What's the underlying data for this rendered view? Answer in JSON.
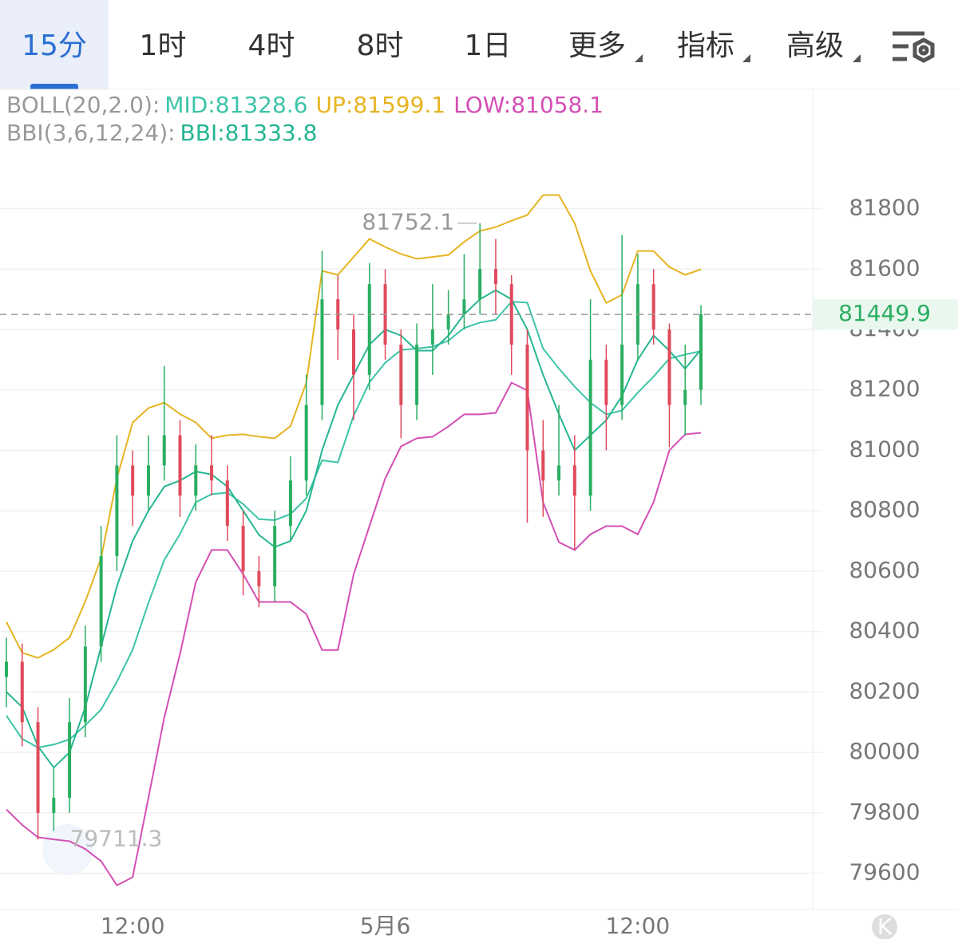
{
  "tabs": [
    "15分",
    "1时",
    "4时",
    "8时",
    "1日",
    "更多",
    "指标",
    "高级"
  ],
  "indicators": {
    "boll": {
      "label": "BOLL(20,2.0):",
      "mid": "MID:81328.6",
      "up": "UP:81599.1",
      "low": "LOW:81058.1"
    },
    "bbi": {
      "label": "BBI(3,6,12,24):",
      "value": "BBI:81333.8"
    }
  },
  "chart_data": {
    "type": "candlestick",
    "categories": [
      null,
      null,
      null,
      null,
      null,
      null,
      null,
      null,
      "12:00",
      null,
      null,
      null,
      null,
      null,
      null,
      null,
      null,
      null,
      null,
      null,
      null,
      null,
      null,
      null,
      "5月6",
      null,
      null,
      null,
      null,
      null,
      null,
      null,
      null,
      null,
      null,
      null,
      null,
      null,
      null,
      null,
      "12:00",
      null,
      null,
      null,
      null
    ],
    "open": [
      80250,
      80300,
      80100,
      79800,
      79850,
      80100,
      80350,
      80650,
      80950,
      80850,
      80950,
      81050,
      80850,
      80950,
      80900,
      80750,
      80600,
      80550,
      80750,
      80900,
      81150,
      81500,
      81400,
      81250,
      81550,
      81350,
      81150,
      81350,
      81400,
      81450,
      81500,
      81600,
      81550,
      81350,
      81000,
      80900,
      80950,
      80850,
      81300,
      81150,
      81350,
      81550,
      81400,
      81150,
      81200
    ],
    "high": [
      80380,
      80360,
      80150,
      79950,
      80180,
      80420,
      80750,
      81050,
      81000,
      81050,
      81280,
      81100,
      81020,
      81050,
      80950,
      80800,
      80650,
      80800,
      80980,
      81250,
      81660,
      81580,
      81450,
      81620,
      81600,
      81400,
      81420,
      81550,
      81530,
      81650,
      81752.1,
      81700,
      81580,
      81400,
      81100,
      81150,
      81050,
      81500,
      81350,
      81713,
      81650,
      81600,
      81420,
      81350,
      81480
    ],
    "low": [
      80150,
      80020,
      79711.3,
      79740,
      79800,
      80050,
      80300,
      80600,
      80750,
      80800,
      80900,
      80780,
      80800,
      80850,
      80700,
      80520,
      80480,
      80500,
      80700,
      80850,
      81100,
      81300,
      81100,
      81200,
      81300,
      81040,
      81100,
      81250,
      81350,
      81400,
      81450,
      81450,
      81250,
      80760,
      80780,
      80850,
      80670,
      80800,
      81000,
      81100,
      81300,
      81350,
      81010,
      81050,
      81150
    ],
    "close": [
      80300,
      80100,
      79800,
      79850,
      80100,
      80350,
      80650,
      80950,
      80850,
      80950,
      81050,
      80850,
      80950,
      80900,
      80750,
      80600,
      80550,
      80750,
      80900,
      81150,
      81500,
      81400,
      81250,
      81550,
      81350,
      81150,
      81350,
      81400,
      81450,
      81500,
      81600,
      81550,
      81350,
      81000,
      80900,
      80950,
      80850,
      81300,
      81150,
      81350,
      81550,
      81400,
      81150,
      81200,
      81449.9
    ],
    "up_color": "#2aae62",
    "down_color": "#e04a5c",
    "overlays": [
      {
        "color": "#e6b422",
        "values": [
          80432,
          80330,
          80313,
          80340,
          80380,
          80500,
          80643,
          80907,
          81092,
          81140,
          81158,
          81120,
          81092,
          81040,
          81050,
          81053,
          81045,
          81040,
          81080,
          81224,
          81594,
          81581,
          81640,
          81700,
          81673,
          81650,
          81634,
          81640,
          81647,
          81690,
          81726,
          81739,
          81760,
          81779,
          81845,
          81845,
          81752,
          81594,
          81488,
          81515,
          81660,
          81660,
          81607,
          81581,
          81599.1
        ]
      },
      {
        "color": "#3cc4a8",
        "values": [
          80122,
          80045,
          80016,
          80026,
          80043,
          80090,
          80142,
          80234,
          80340,
          80495,
          80637,
          80723,
          80828,
          80855,
          80860,
          80822,
          80772,
          80769,
          80789,
          80841,
          80967,
          80960,
          81115,
          81225,
          81290,
          81332,
          81337,
          81343,
          81363,
          81405,
          81423,
          81432,
          81492,
          81489,
          81337,
          81271,
          81211,
          81158,
          81119,
          81132,
          81191,
          81244,
          81304,
          81317,
          81328.6
        ]
      },
      {
        "color": "#d44fb5",
        "values": [
          79811,
          79760,
          79719,
          79712,
          79706,
          79680,
          79640,
          79560,
          79587,
          79850,
          80115,
          80326,
          80564,
          80670,
          80670,
          80590,
          80498,
          80498,
          80498,
          80458,
          80339,
          80339,
          80590,
          80749,
          80907,
          81013,
          81040,
          81045,
          81079,
          81119,
          81119,
          81124,
          81224,
          81198,
          80828,
          80696,
          80670,
          80722,
          80749,
          80749,
          80722,
          80828,
          81000,
          81053,
          81058.1
        ]
      },
      {
        "color": "#25b592",
        "values": [
          80200,
          80150,
          80020,
          79950,
          80000,
          80150,
          80350,
          80550,
          80700,
          80800,
          80880,
          80900,
          80930,
          80920,
          80880,
          80800,
          80720,
          80680,
          80700,
          80800,
          81000,
          81150,
          81250,
          81350,
          81400,
          81380,
          81330,
          81330,
          81380,
          81450,
          81500,
          81530,
          81500,
          81400,
          81250,
          81120,
          81000,
          81050,
          81100,
          81180,
          81300,
          81380,
          81330,
          81270,
          81333.8
        ]
      }
    ],
    "ylim": [
      79480,
      82195
    ],
    "yticks": [
      79600,
      79800,
      80000,
      80200,
      80400,
      80600,
      80800,
      81000,
      81200,
      81400,
      81600,
      81800
    ],
    "grid": true
  }
}
